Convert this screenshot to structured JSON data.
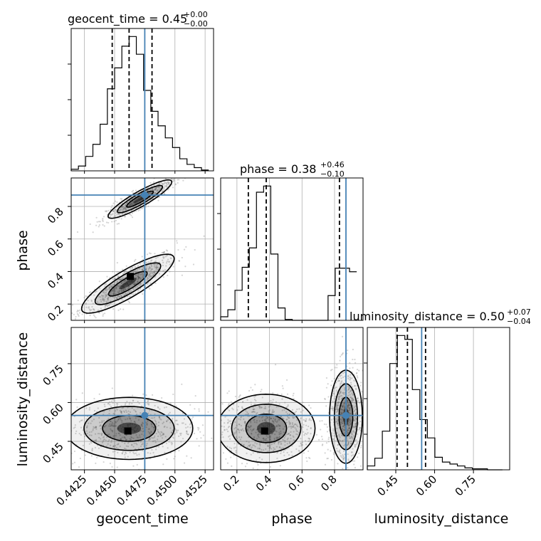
{
  "chart_data": {
    "type": "corner",
    "parameters": [
      "geocent_time",
      "phase",
      "luminosity_distance"
    ],
    "axis_labels": {
      "x": [
        "geocent_time",
        "phase",
        "luminosity_distance"
      ],
      "y": [
        "phase",
        "luminosity_distance"
      ]
    },
    "titles": [
      {
        "param": "geocent_time",
        "text": "geocent_time = 0.45",
        "sup": "+0.00",
        "sub": "−0.00"
      },
      {
        "param": "phase",
        "text": "phase = 0.38",
        "sup": "+0.46",
        "sub": "−0.10"
      },
      {
        "param": "luminosity_distance",
        "text": "luminosity_distance = 0.50",
        "sup": "+0.07",
        "sub": "−0.04"
      }
    ],
    "ranges": {
      "geocent_time": [
        0.4414,
        0.4532
      ],
      "phase": [
        0.1,
        0.975
      ],
      "luminosity_distance": [
        0.34,
        0.89
      ]
    },
    "ticks": {
      "geocent_time": [
        0.4425,
        0.445,
        0.4475,
        0.45,
        0.4525
      ],
      "phase": [
        0.2,
        0.4,
        0.6,
        0.8
      ],
      "luminosity_distance": [
        0.45,
        0.6,
        0.75
      ]
    },
    "tick_labels": {
      "geocent_time": [
        "0.4425",
        "0.4450",
        "0.4475",
        "0.4500",
        "0.4525"
      ],
      "phase": [
        "0.2",
        "0.4",
        "0.6",
        "0.8"
      ],
      "luminosity_distance": [
        "0.45",
        "0.60",
        "0.75"
      ]
    },
    "truths": {
      "geocent_time": 0.4475,
      "phase": 0.87,
      "luminosity_distance": 0.55
    },
    "quantiles": {
      "geocent_time": [
        0.4448,
        0.4462,
        0.4481
      ],
      "phase": [
        0.27,
        0.38,
        0.83
      ],
      "luminosity_distance": [
        0.455,
        0.495,
        0.565
      ]
    },
    "histograms": {
      "geocent_time": {
        "edges": [
          0.4414,
          0.442,
          0.4426,
          0.4432,
          0.4438,
          0.4444,
          0.445,
          0.4456,
          0.4462,
          0.4468,
          0.4474,
          0.448,
          0.4486,
          0.4492,
          0.4498,
          0.4504,
          0.451,
          0.4516,
          0.4522,
          0.4528
        ],
        "counts": [
          2,
          6,
          18,
          33,
          58,
          102,
          128,
          155,
          167,
          145,
          100,
          74,
          56,
          41,
          29,
          15,
          8,
          4,
          1
        ]
      },
      "phase": {
        "edges": [
          0.1,
          0.144,
          0.188,
          0.232,
          0.276,
          0.32,
          0.364,
          0.408,
          0.452,
          0.496,
          0.54,
          0.584,
          0.628,
          0.672,
          0.716,
          0.76,
          0.804,
          0.848,
          0.892,
          0.936
        ],
        "counts": [
          4,
          12,
          34,
          60,
          82,
          145,
          152,
          75,
          14,
          1,
          0,
          0,
          0,
          0,
          0,
          28,
          59,
          59,
          55
        ]
      },
      "luminosity_distance": {
        "edges": [
          0.34,
          0.369,
          0.398,
          0.427,
          0.456,
          0.485,
          0.514,
          0.543,
          0.572,
          0.601,
          0.63,
          0.659,
          0.688,
          0.717,
          0.746,
          0.775,
          0.804,
          0.833,
          0.862
        ],
        "counts": [
          4,
          12,
          40,
          110,
          139,
          135,
          83,
          52,
          33,
          13,
          8,
          6,
          4,
          2,
          1,
          1,
          0,
          0
        ]
      }
    },
    "contours": [
      {
        "x": "geocent_time",
        "y": "phase",
        "clusters": [
          {
            "cx": 0.4461,
            "cy": 0.325,
            "slope": 40,
            "a": 0.0016,
            "b": 0.04
          },
          {
            "cx": 0.4471,
            "cy": 0.845,
            "slope": 40,
            "a": 0.0011,
            "b": 0.022
          }
        ],
        "peaks": [
          {
            "x": 0.4463,
            "y": 0.37
          }
        ]
      },
      {
        "x": "geocent_time",
        "y": "luminosity_distance",
        "clusters": [
          {
            "cx": 0.4462,
            "cy": 0.5,
            "slope": 0,
            "a": 0.0022,
            "b": 0.05
          }
        ],
        "peaks": [
          {
            "x": 0.4461,
            "y": 0.49
          }
        ]
      },
      {
        "x": "phase",
        "y": "luminosity_distance",
        "clusters": [
          {
            "cx": 0.38,
            "cy": 0.5,
            "slope": 0,
            "a": 0.125,
            "b": 0.055
          },
          {
            "cx": 0.87,
            "cy": 0.545,
            "slope": 0,
            "a": 0.042,
            "b": 0.075
          }
        ],
        "peaks": [
          {
            "x": 0.37,
            "y": 0.49
          }
        ]
      }
    ],
    "colors": {
      "truth": "#4682b4",
      "line": "#000000",
      "grid": "#b0b0b0",
      "scatter": "#888888"
    }
  }
}
